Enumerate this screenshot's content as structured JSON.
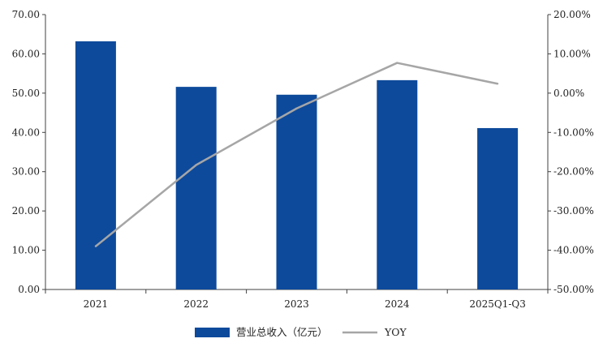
{
  "chart_data": {
    "type": "bar",
    "categories": [
      "2021",
      "2022",
      "2023",
      "2024",
      "2025Q1-Q3"
    ],
    "series": [
      {
        "name": "营业总收入（亿元）",
        "kind": "bar",
        "axis": "left",
        "values": [
          63.2,
          51.6,
          49.6,
          53.3,
          41.1
        ]
      },
      {
        "name": "YOY",
        "kind": "line",
        "axis": "right",
        "values": [
          -39.0,
          -18.3,
          -3.9,
          7.7,
          2.4
        ]
      }
    ],
    "title": "",
    "xlabel": "",
    "ylabel": "",
    "ylim": [
      0,
      70
    ],
    "y2lim": [
      -50,
      20
    ],
    "y_ticks": [
      "0.00",
      "10.00",
      "20.00",
      "30.00",
      "40.00",
      "50.00",
      "60.00",
      "70.00"
    ],
    "y2_ticks": [
      "-50.00%",
      "-40.00%",
      "-30.00%",
      "-20.00%",
      "-10.00%",
      "0.00%",
      "10.00%",
      "20.00%"
    ],
    "grid": false,
    "legend_position": "bottom",
    "colors": {
      "bar": "#0d4a9b",
      "line": "#a6a6a6",
      "axis": "#404040"
    }
  }
}
